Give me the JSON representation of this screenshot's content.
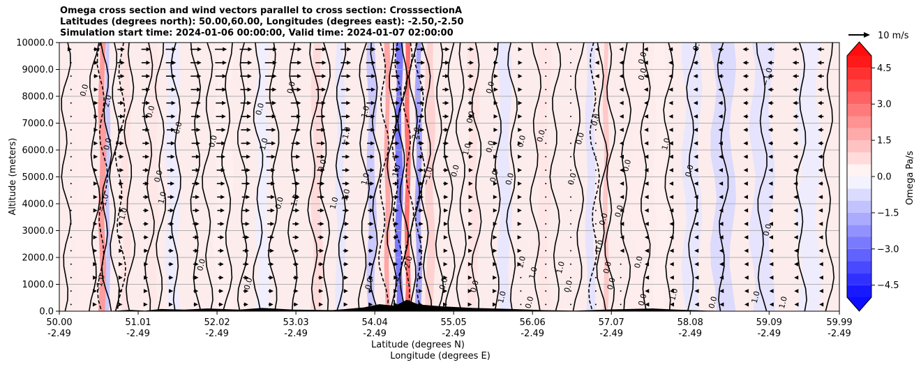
{
  "chart_data": {
    "type": "heatmap",
    "title_lines": [
      "Omega cross section and wind vectors parallel to cross section: CrosssectionA",
      "Latitudes (degrees north): 50.00,60.00, Longitudes (degrees east): -2.50,-2.50",
      "Simulation start time: 2024-01-06 00:00:00, Valid time: 2024-01-07 02:00:00"
    ],
    "ylabel": "Altitude (meters)",
    "xlabel_line1": "Latitude (degrees N)",
    "xlabel_line2": "Longitude (degrees E)",
    "ylim": [
      0,
      10000
    ],
    "xlim": [
      50.0,
      59.99
    ],
    "y_ticks": [
      "0.0",
      "1000.0",
      "2000.0",
      "3000.0",
      "4000.0",
      "5000.0",
      "6000.0",
      "7000.0",
      "8000.0",
      "9000.0",
      "10000.0"
    ],
    "x_ticks": [
      {
        "value": 50.0,
        "lat": "50.00",
        "lon": "-2.49"
      },
      {
        "value": 51.01,
        "lat": "51.01",
        "lon": "-2.49"
      },
      {
        "value": 52.02,
        "lat": "52.02",
        "lon": "-2.49"
      },
      {
        "value": 53.03,
        "lat": "53.03",
        "lon": "-2.49"
      },
      {
        "value": 54.04,
        "lat": "54.04",
        "lon": "-2.49"
      },
      {
        "value": 55.05,
        "lat": "55.05",
        "lon": "-2.49"
      },
      {
        "value": 56.06,
        "lat": "56.06",
        "lon": "-2.49"
      },
      {
        "value": 57.07,
        "lat": "57.07",
        "lon": "-2.49"
      },
      {
        "value": 58.08,
        "lat": "58.08",
        "lon": "-2.49"
      },
      {
        "value": 59.09,
        "lat": "59.09",
        "lon": "-2.49"
      },
      {
        "value": 59.99,
        "lat": "59.99",
        "lon": "-2.49"
      }
    ],
    "colorbar": {
      "label": "Omega Pa/s",
      "range": [
        -5,
        5
      ],
      "levels": 20,
      "ticks": [
        "4.5",
        "3.0",
        "1.5",
        "0.0",
        "−1.5",
        "−3.0",
        "−4.5"
      ],
      "tick_values": [
        4.5,
        3.0,
        1.5,
        0.0,
        -1.5,
        -3.0,
        -4.5
      ]
    },
    "quiver_key": {
      "label": "10 m/s",
      "value": 10
    },
    "bands": [
      {
        "lat": 50.3,
        "w": 0.2,
        "omega": 0.4
      },
      {
        "lat": 50.55,
        "w": 0.08,
        "omega": 2.2
      },
      {
        "lat": 50.62,
        "w": 0.05,
        "omega": -1.2
      },
      {
        "lat": 50.85,
        "w": 0.1,
        "omega": 0.6
      },
      {
        "lat": 51.2,
        "w": 0.12,
        "omega": 0.5
      },
      {
        "lat": 51.45,
        "w": 0.15,
        "omega": -0.4
      },
      {
        "lat": 52.1,
        "w": 0.2,
        "omega": 0.3
      },
      {
        "lat": 52.6,
        "w": 0.15,
        "omega": -0.3
      },
      {
        "lat": 53.3,
        "w": 0.12,
        "omega": 0.8
      },
      {
        "lat": 53.6,
        "w": 0.1,
        "omega": -0.5
      },
      {
        "lat": 54.0,
        "w": 0.1,
        "omega": -1.2
      },
      {
        "lat": 54.2,
        "w": 0.06,
        "omega": 2.0
      },
      {
        "lat": 54.35,
        "w": 0.08,
        "omega": -3.0
      },
      {
        "lat": 54.46,
        "w": 0.06,
        "omega": 3.2
      },
      {
        "lat": 54.6,
        "w": 0.07,
        "omega": -2.0
      },
      {
        "lat": 54.75,
        "w": 0.1,
        "omega": 1.0
      },
      {
        "lat": 55.3,
        "w": 0.12,
        "omega": 0.6
      },
      {
        "lat": 55.7,
        "w": 0.15,
        "omega": -0.5
      },
      {
        "lat": 56.2,
        "w": 0.15,
        "omega": 0.5
      },
      {
        "lat": 56.8,
        "w": 0.1,
        "omega": -0.6
      },
      {
        "lat": 57.0,
        "w": 0.06,
        "omega": 1.2
      },
      {
        "lat": 57.4,
        "w": 0.15,
        "omega": 0.4
      },
      {
        "lat": 57.7,
        "w": 0.15,
        "omega": 0.3
      },
      {
        "lat": 58.1,
        "w": 0.2,
        "omega": -0.5
      },
      {
        "lat": 58.5,
        "w": 0.25,
        "omega": -0.8
      },
      {
        "lat": 59.0,
        "w": 0.25,
        "omega": -0.6
      },
      {
        "lat": 59.6,
        "w": 0.25,
        "omega": -0.4
      }
    ],
    "wind_profile": [
      {
        "lat": 50.0,
        "u": 0
      },
      {
        "lat": 50.7,
        "u": 4
      },
      {
        "lat": 51.5,
        "u": 6
      },
      {
        "lat": 52.5,
        "u": 7
      },
      {
        "lat": 53.5,
        "u": 6
      },
      {
        "lat": 54.5,
        "u": 5
      },
      {
        "lat": 55.5,
        "u": 3
      },
      {
        "lat": 56.5,
        "u": 0
      },
      {
        "lat": 57.3,
        "u": -2
      },
      {
        "lat": 58.3,
        "u": -3
      },
      {
        "lat": 59.99,
        "u": -4
      }
    ],
    "contour_lines": [
      {
        "lat": 50.08,
        "kind": "solid"
      },
      {
        "lat": 50.45,
        "kind": "solid"
      },
      {
        "lat": 50.55,
        "kind": "dashed"
      },
      {
        "lat": 50.6,
        "kind": "solid"
      },
      {
        "lat": 50.7,
        "kind": "solid"
      },
      {
        "lat": 50.78,
        "kind": "dashed"
      },
      {
        "lat": 50.9,
        "kind": "solid"
      },
      {
        "lat": 51.15,
        "kind": "solid"
      },
      {
        "lat": 51.3,
        "kind": "solid"
      },
      {
        "lat": 51.5,
        "kind": "solid"
      },
      {
        "lat": 51.75,
        "kind": "solid"
      },
      {
        "lat": 51.9,
        "kind": "solid"
      },
      {
        "lat": 52.15,
        "kind": "solid"
      },
      {
        "lat": 52.35,
        "kind": "solid"
      },
      {
        "lat": 52.55,
        "kind": "solid"
      },
      {
        "lat": 52.75,
        "kind": "solid"
      },
      {
        "lat": 53.0,
        "kind": "solid"
      },
      {
        "lat": 53.25,
        "kind": "solid"
      },
      {
        "lat": 53.4,
        "kind": "solid"
      },
      {
        "lat": 53.6,
        "kind": "solid"
      },
      {
        "lat": 53.9,
        "kind": "solid"
      },
      {
        "lat": 54.05,
        "kind": "solid"
      },
      {
        "lat": 54.15,
        "kind": "dashed"
      },
      {
        "lat": 54.25,
        "kind": "solid"
      },
      {
        "lat": 54.32,
        "kind": "dashed"
      },
      {
        "lat": 54.4,
        "kind": "solid"
      },
      {
        "lat": 54.47,
        "kind": "dashed"
      },
      {
        "lat": 54.55,
        "kind": "solid"
      },
      {
        "lat": 54.62,
        "kind": "dashed"
      },
      {
        "lat": 54.7,
        "kind": "solid"
      },
      {
        "lat": 54.85,
        "kind": "solid"
      },
      {
        "lat": 55.0,
        "kind": "solid"
      },
      {
        "lat": 55.15,
        "kind": "solid"
      },
      {
        "lat": 55.35,
        "kind": "solid"
      },
      {
        "lat": 55.6,
        "kind": "solid"
      },
      {
        "lat": 55.8,
        "kind": "solid"
      },
      {
        "lat": 56.1,
        "kind": "solid"
      },
      {
        "lat": 56.35,
        "kind": "solid"
      },
      {
        "lat": 56.65,
        "kind": "solid"
      },
      {
        "lat": 56.85,
        "kind": "dashed"
      },
      {
        "lat": 56.95,
        "kind": "solid"
      },
      {
        "lat": 57.05,
        "kind": "solid"
      },
      {
        "lat": 57.25,
        "kind": "solid"
      },
      {
        "lat": 57.5,
        "kind": "solid"
      },
      {
        "lat": 57.8,
        "kind": "solid"
      },
      {
        "lat": 58.1,
        "kind": "solid"
      },
      {
        "lat": 58.5,
        "kind": "solid"
      },
      {
        "lat": 59.0,
        "kind": "solid"
      },
      {
        "lat": 59.5,
        "kind": "solid"
      },
      {
        "lat": 59.85,
        "kind": "solid"
      }
    ],
    "contour_labels": [
      {
        "lat": 50.35,
        "alt": 8200,
        "text": "0.0"
      },
      {
        "lat": 50.65,
        "alt": 7800,
        "text": "2.0"
      },
      {
        "lat": 50.65,
        "alt": 6200,
        "text": "0.0"
      },
      {
        "lat": 50.6,
        "alt": 4000,
        "text": "−1.0"
      },
      {
        "lat": 50.85,
        "alt": 3600,
        "text": "1.0"
      },
      {
        "lat": 50.55,
        "alt": 1000,
        "text": "−1.0"
      },
      {
        "lat": 51.2,
        "alt": 7400,
        "text": "0.0"
      },
      {
        "lat": 51.3,
        "alt": 5000,
        "text": "0.0"
      },
      {
        "lat": 51.35,
        "alt": 4200,
        "text": "1.0"
      },
      {
        "lat": 51.55,
        "alt": 6800,
        "text": "0.0"
      },
      {
        "lat": 51.85,
        "alt": 1700,
        "text": "0.0"
      },
      {
        "lat": 52.0,
        "alt": 6300,
        "text": "0.0"
      },
      {
        "lat": 52.6,
        "alt": 7500,
        "text": "0.0"
      },
      {
        "lat": 52.45,
        "alt": 1000,
        "text": "0.0"
      },
      {
        "lat": 52.65,
        "alt": 6200,
        "text": "1.0"
      },
      {
        "lat": 52.85,
        "alt": 4000,
        "text": "0.0"
      },
      {
        "lat": 53.0,
        "alt": 8300,
        "text": "0.0"
      },
      {
        "lat": 53.05,
        "alt": 4100,
        "text": "1.0"
      },
      {
        "lat": 53.4,
        "alt": 5400,
        "text": "0.0"
      },
      {
        "lat": 53.55,
        "alt": 4000,
        "text": "1.0"
      },
      {
        "lat": 53.7,
        "alt": 4300,
        "text": "1.0"
      },
      {
        "lat": 53.7,
        "alt": 6500,
        "text": "−1.0"
      },
      {
        "lat": 53.95,
        "alt": 7400,
        "text": "1.0"
      },
      {
        "lat": 53.95,
        "alt": 4900,
        "text": "1.0"
      },
      {
        "lat": 54.0,
        "alt": 1000,
        "text": "0.0"
      },
      {
        "lat": 54.35,
        "alt": 5200,
        "text": "1.0"
      },
      {
        "lat": 54.6,
        "alt": 6600,
        "text": "2.0"
      },
      {
        "lat": 54.75,
        "alt": 5000,
        "text": "−1.0"
      },
      {
        "lat": 54.5,
        "alt": 1800,
        "text": "2.0"
      },
      {
        "lat": 54.95,
        "alt": 1000,
        "text": "0.0"
      },
      {
        "lat": 55.1,
        "alt": 5200,
        "text": "0.0"
      },
      {
        "lat": 55.25,
        "alt": 6000,
        "text": "1.0"
      },
      {
        "lat": 55.3,
        "alt": 7200,
        "text": "0.0"
      },
      {
        "lat": 55.35,
        "alt": 900,
        "text": "0.0"
      },
      {
        "lat": 55.55,
        "alt": 6100,
        "text": "0.0"
      },
      {
        "lat": 55.6,
        "alt": 5000,
        "text": "0.0"
      },
      {
        "lat": 55.55,
        "alt": 8300,
        "text": "0.0"
      },
      {
        "lat": 55.7,
        "alt": 500,
        "text": "1.0"
      },
      {
        "lat": 55.8,
        "alt": 4900,
        "text": "0.0"
      },
      {
        "lat": 55.95,
        "alt": 6300,
        "text": "0.0"
      },
      {
        "lat": 55.95,
        "alt": 1800,
        "text": "1.0"
      },
      {
        "lat": 56.05,
        "alt": 300,
        "text": "0.0"
      },
      {
        "lat": 56.1,
        "alt": 1400,
        "text": "1.0"
      },
      {
        "lat": 56.2,
        "alt": 6500,
        "text": "0.0"
      },
      {
        "lat": 56.45,
        "alt": 1600,
        "text": "1.0"
      },
      {
        "lat": 56.55,
        "alt": 900,
        "text": "0.0"
      },
      {
        "lat": 56.6,
        "alt": 4900,
        "text": "0.0"
      },
      {
        "lat": 56.7,
        "alt": 6400,
        "text": "0.0"
      },
      {
        "lat": 56.9,
        "alt": 7100,
        "text": "0.0"
      },
      {
        "lat": 56.95,
        "alt": 2400,
        "text": "0.0"
      },
      {
        "lat": 57.0,
        "alt": 3400,
        "text": "0.0"
      },
      {
        "lat": 57.05,
        "alt": 1600,
        "text": "0.0"
      },
      {
        "lat": 57.1,
        "alt": 1000,
        "text": "0.0"
      },
      {
        "lat": 57.2,
        "alt": 3700,
        "text": "0.0"
      },
      {
        "lat": 57.3,
        "alt": 5400,
        "text": "0.0"
      },
      {
        "lat": 57.5,
        "alt": 9400,
        "text": "0.0"
      },
      {
        "lat": 57.5,
        "alt": 8800,
        "text": "0.0"
      },
      {
        "lat": 57.45,
        "alt": 1800,
        "text": "0.0"
      },
      {
        "lat": 57.5,
        "alt": 400,
        "text": "0.0"
      },
      {
        "lat": 57.8,
        "alt": 6200,
        "text": "1.0"
      },
      {
        "lat": 58.1,
        "alt": 5200,
        "text": "0.0"
      },
      {
        "lat": 58.2,
        "alt": 9900,
        "text": "0.0"
      },
      {
        "lat": 57.9,
        "alt": 600,
        "text": "1.0"
      },
      {
        "lat": 58.4,
        "alt": 300,
        "text": "0.0"
      },
      {
        "lat": 58.95,
        "alt": 500,
        "text": "1.0"
      },
      {
        "lat": 59.1,
        "alt": 3000,
        "text": "0.0"
      },
      {
        "lat": 59.1,
        "alt": 8700,
        "text": "−1.0"
      },
      {
        "lat": 59.3,
        "alt": 300,
        "text": "1.0"
      }
    ]
  }
}
